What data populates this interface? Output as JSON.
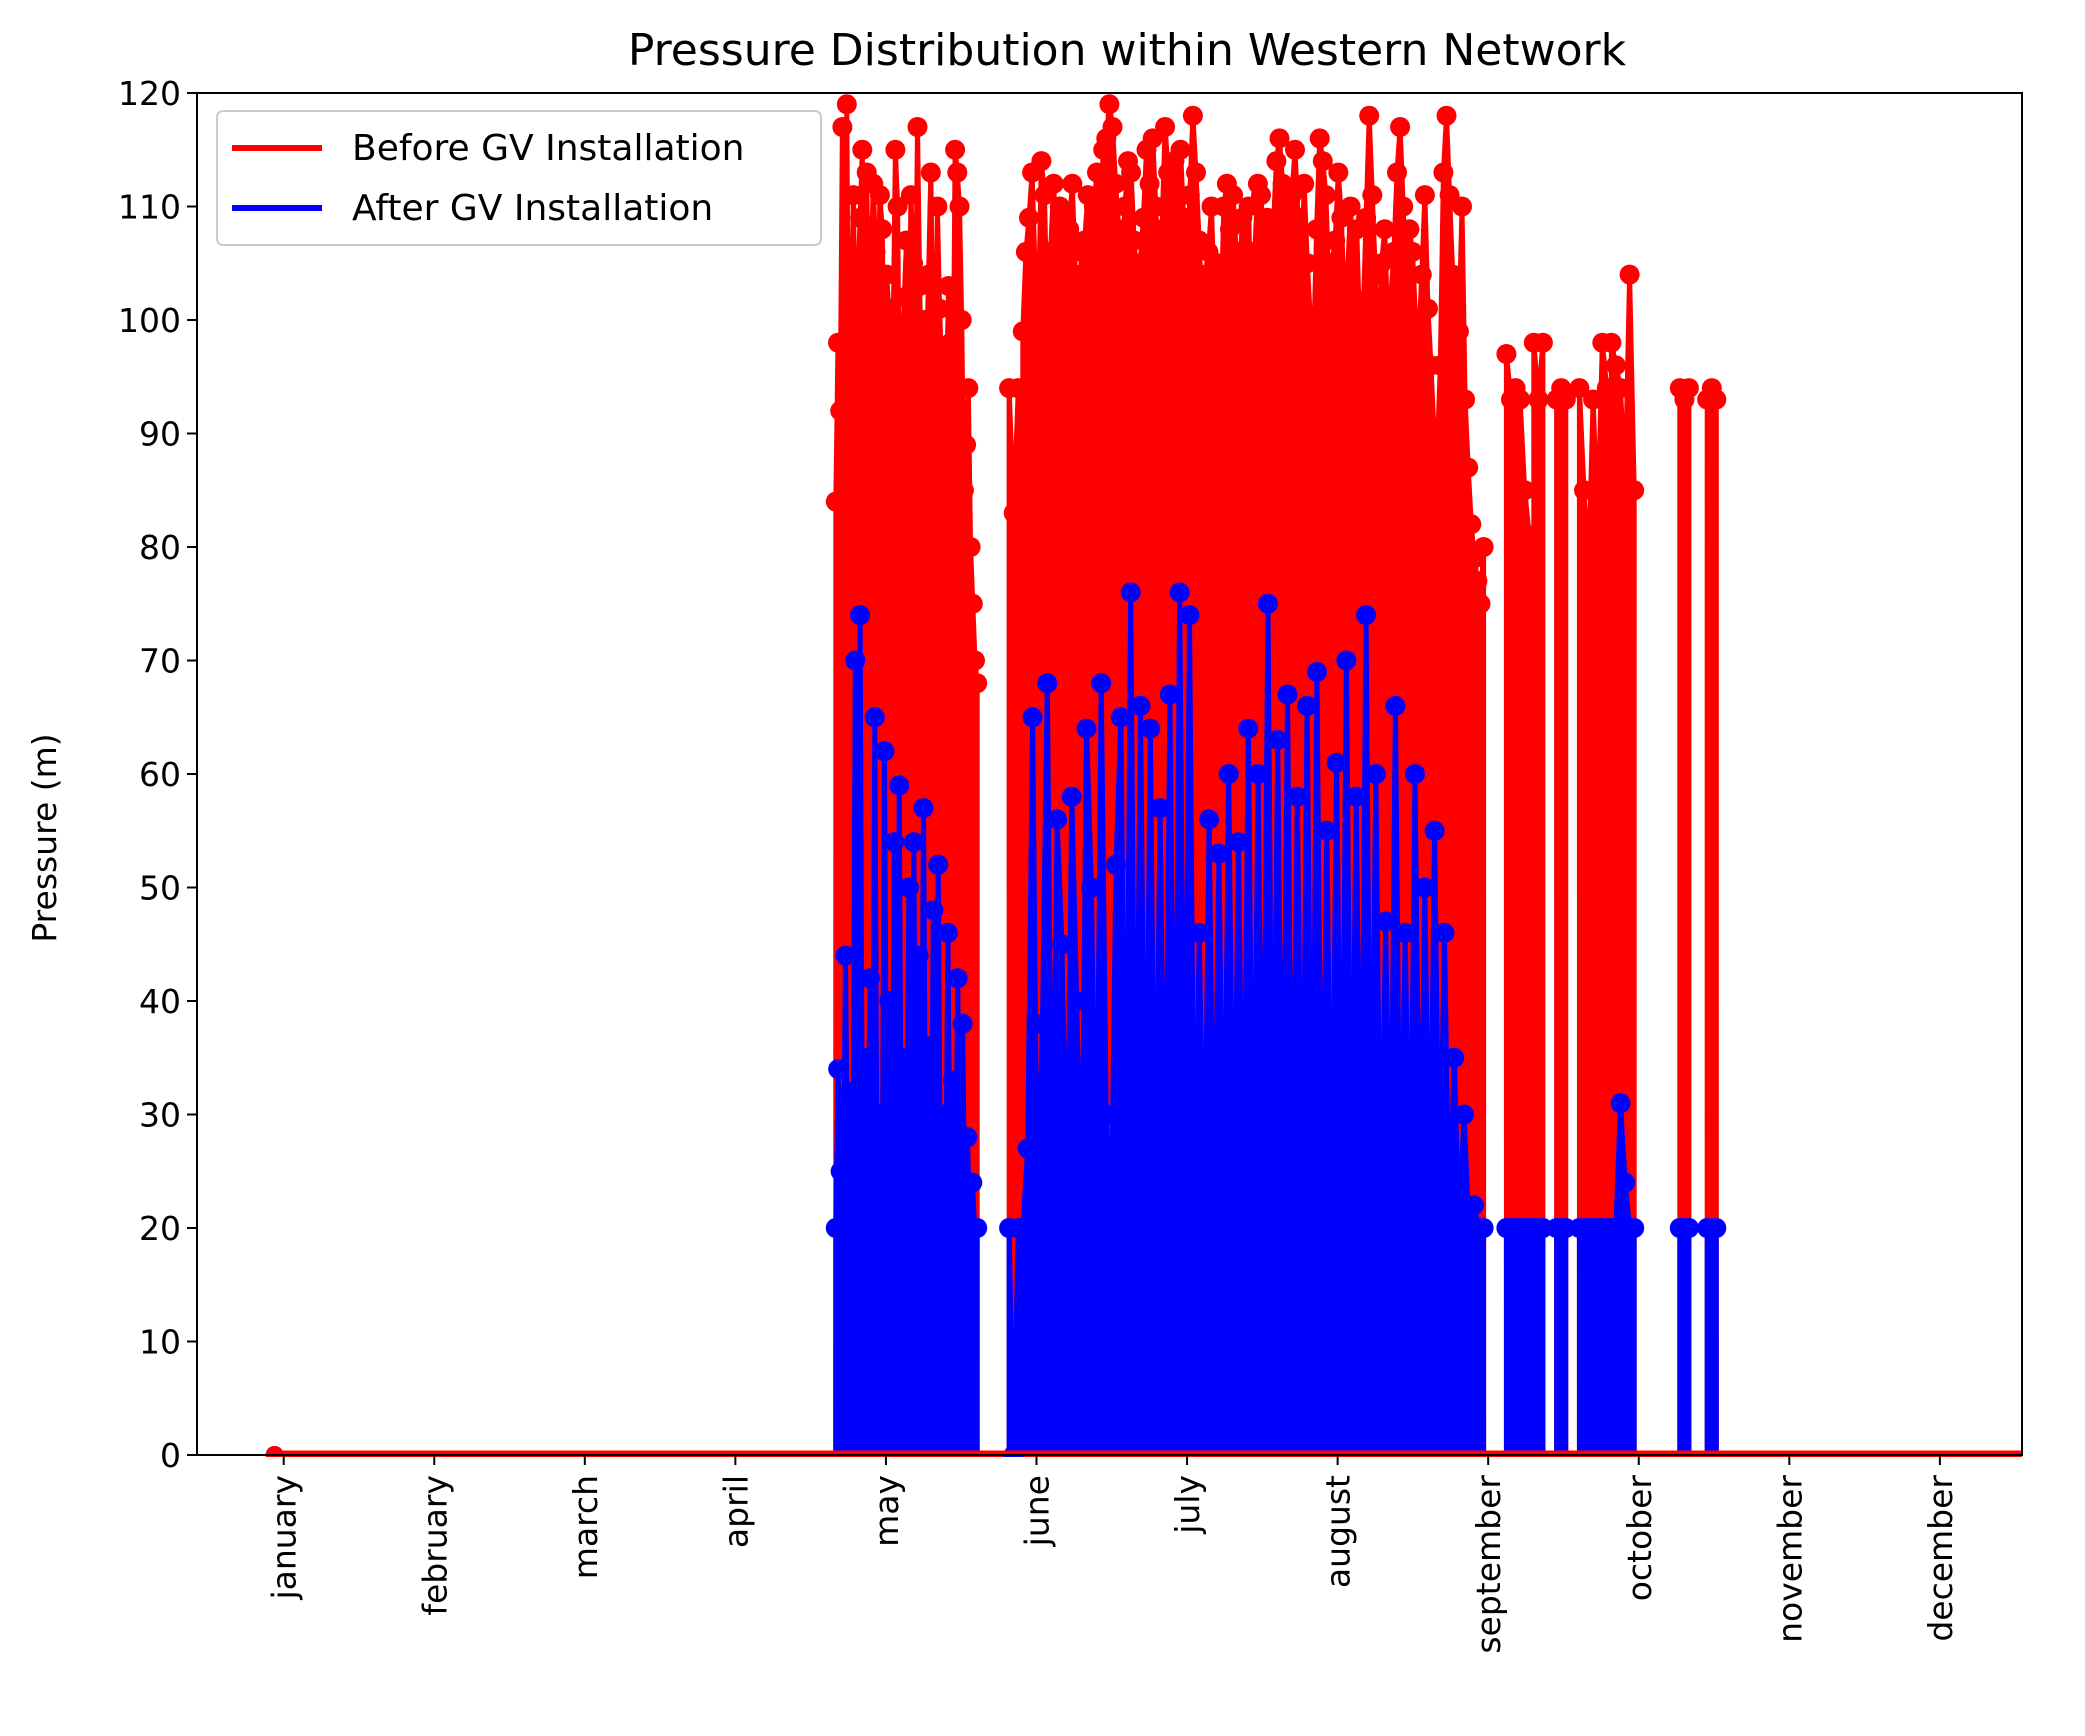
{
  "chart_data": {
    "type": "line",
    "title": "Pressure Distribution within Western Network",
    "xlabel": "",
    "ylabel": "Pressure (m)",
    "ylim": [
      0,
      120
    ],
    "yticks": [
      0,
      10,
      20,
      30,
      40,
      50,
      60,
      70,
      80,
      90,
      100,
      110,
      120
    ],
    "xlim": [
      1,
      401
    ],
    "x_ticks": [
      {
        "label": "january",
        "x": 20
      },
      {
        "label": "february",
        "x": 53
      },
      {
        "label": "march",
        "x": 86
      },
      {
        "label": "april",
        "x": 119
      },
      {
        "label": "may",
        "x": 152
      },
      {
        "label": "june",
        "x": 185
      },
      {
        "label": "july",
        "x": 218
      },
      {
        "label": "august",
        "x": 251
      },
      {
        "label": "september",
        "x": 284
      },
      {
        "label": "october",
        "x": 317
      },
      {
        "label": "november",
        "x": 350
      },
      {
        "label": "december",
        "x": 383
      }
    ],
    "legend_position": "upper-left",
    "grid": false,
    "markers": true,
    "baseline": {
      "x_start": 18,
      "x_end": 420,
      "value": 0
    },
    "series": [
      {
        "name": "Before GV Installation",
        "color": "#ff0000",
        "segments": [
          {
            "x_start": 141,
            "x_end": 172,
            "values": [
              84,
              98,
              92,
              117,
              90,
              119,
              86,
              100,
              111,
              95,
              103,
              109,
              115,
              88,
              113,
              97,
              104,
              112,
              106,
              99,
              111,
              108,
              95,
              104,
              101,
              94,
              99,
              115,
              110,
              88,
              97,
              102,
              107,
              93,
              111,
              105,
              98,
              117,
              103,
              92,
              100,
              96,
              104,
              113,
              99,
              90,
              110,
              101,
              95,
              97,
              92,
              103,
              98,
              90,
              115,
              113,
              110,
              100,
              85,
              89,
              94,
              80,
              75,
              70,
              68
            ]
          },
          {
            "x_start": 179,
            "x_end": 181,
            "values": [
              94,
              83,
              94
            ]
          },
          {
            "x_start": 182,
            "x_end": 283,
            "values": [
              99,
              106,
              109,
              113,
              104,
              100,
              114,
              111,
              98,
              106,
              112,
              105,
              110,
              109,
              103,
              108,
              112,
              104,
              100,
              106,
              107,
              111,
              102,
              110,
              113,
              108,
              115,
              116,
              119,
              117,
              112,
              108,
              104,
              110,
              114,
              113,
              107,
              103,
              105,
              109,
              115,
              112,
              116,
              110,
              101,
              108,
              117,
              113,
              111,
              114,
              106,
              115,
              109,
              103,
              111,
              118,
              113,
              107,
              101,
              104,
              106,
              110,
              101,
              105,
              99,
              110,
              112,
              108,
              111,
              106,
              103,
              109,
              104,
              110,
              97,
              106,
              112,
              111,
              106,
              109,
              103,
              108,
              114,
              116,
              112,
              110,
              106,
              111,
              115,
              109,
              103,
              112,
              105,
              100,
              97,
              108,
              116,
              114,
              111,
              103,
              105,
              107,
              113,
              109,
              101,
              104,
              110,
              102,
              108,
              98,
              100,
              109,
              118,
              111,
              104,
              95,
              105,
              108,
              99,
              102,
              106,
              113,
              117,
              110,
              102,
              108,
              106,
              100,
              98,
              104,
              111,
              101,
              96,
              90,
              88,
              96,
              113,
              118,
              111,
              104,
              103,
              99,
              110,
              93,
              87,
              82,
              79,
              77,
              75,
              80
            ]
          },
          {
            "x_start": 288,
            "x_end": 293,
            "values": [
              97,
              93,
              94,
              93,
              85,
              81
            ]
          },
          {
            "x_start": 294,
            "x_end": 296,
            "values": [
              98,
              93,
              98
            ]
          },
          {
            "x_start": 299,
            "x_end": 301,
            "values": [
              93,
              94,
              93
            ]
          },
          {
            "x_start": 304,
            "x_end": 310,
            "values": [
              94,
              85,
              78,
              93,
              82,
              98,
              94
            ]
          },
          {
            "x_start": 311,
            "x_end": 316,
            "values": [
              98,
              96,
              94,
              85,
              104,
              85
            ]
          },
          {
            "x_start": 326,
            "x_end": 328,
            "values": [
              94,
              93,
              94
            ]
          },
          {
            "x_start": 332,
            "x_end": 334,
            "values": [
              93,
              94,
              93
            ]
          }
        ]
      },
      {
        "name": "After GV Installation",
        "color": "#0000ff",
        "segments": [
          {
            "x_start": 141,
            "x_end": 172,
            "values": [
              20,
              34,
              25,
              20,
              44,
              20,
              32,
              20,
              70,
              20,
              74,
              20,
              35,
              20,
              42,
              20,
              65,
              20,
              30,
              20,
              62,
              20,
              40,
              20,
              54,
              20,
              59,
              20,
              35,
              20,
              50,
              20,
              54,
              20,
              44,
              20,
              57,
              20,
              36,
              20,
              48,
              20,
              52,
              20,
              30,
              20,
              46,
              20,
              33,
              20,
              42,
              20,
              38,
              20,
              28,
              20,
              24,
              20,
              20
            ]
          },
          {
            "x_start": 179,
            "x_end": 181,
            "values": [
              20,
              0,
              20
            ]
          },
          {
            "x_start": 182,
            "x_end": 283,
            "values": [
              20,
              27,
              65,
              20,
              38,
              68,
              20,
              56,
              45,
              20,
              58,
              40,
              20,
              64,
              50,
              20,
              68,
              30,
              20,
              52,
              65,
              20,
              76,
              20,
              66,
              20,
              64,
              20,
              57,
              20,
              67,
              20,
              76,
              20,
              74,
              20,
              46,
              20,
              56,
              20,
              53,
              20,
              60,
              20,
              54,
              20,
              64,
              20,
              60,
              20,
              75,
              20,
              63,
              20,
              67,
              20,
              58,
              20,
              66,
              20,
              69,
              20,
              55,
              20,
              61,
              20,
              70,
              20,
              58,
              20,
              74,
              20,
              60,
              20,
              47,
              20,
              66,
              20,
              46,
              20,
              60,
              20,
              50,
              20,
              55,
              20,
              46,
              20,
              35,
              20,
              30,
              20,
              22,
              20,
              20
            ]
          },
          {
            "x_start": 288,
            "x_end": 293,
            "values": [
              20,
              20,
              20,
              20,
              20,
              20
            ]
          },
          {
            "x_start": 294,
            "x_end": 296,
            "values": [
              20,
              20,
              20
            ]
          },
          {
            "x_start": 299,
            "x_end": 301,
            "values": [
              20,
              20,
              20
            ]
          },
          {
            "x_start": 304,
            "x_end": 310,
            "values": [
              20,
              20,
              20,
              20,
              20,
              20,
              20
            ]
          },
          {
            "x_start": 311,
            "x_end": 316,
            "values": [
              20,
              20,
              31,
              24,
              20,
              20
            ]
          },
          {
            "x_start": 326,
            "x_end": 328,
            "values": [
              20,
              20,
              20
            ]
          },
          {
            "x_start": 332,
            "x_end": 334,
            "values": [
              20,
              20,
              20
            ]
          }
        ]
      }
    ]
  }
}
